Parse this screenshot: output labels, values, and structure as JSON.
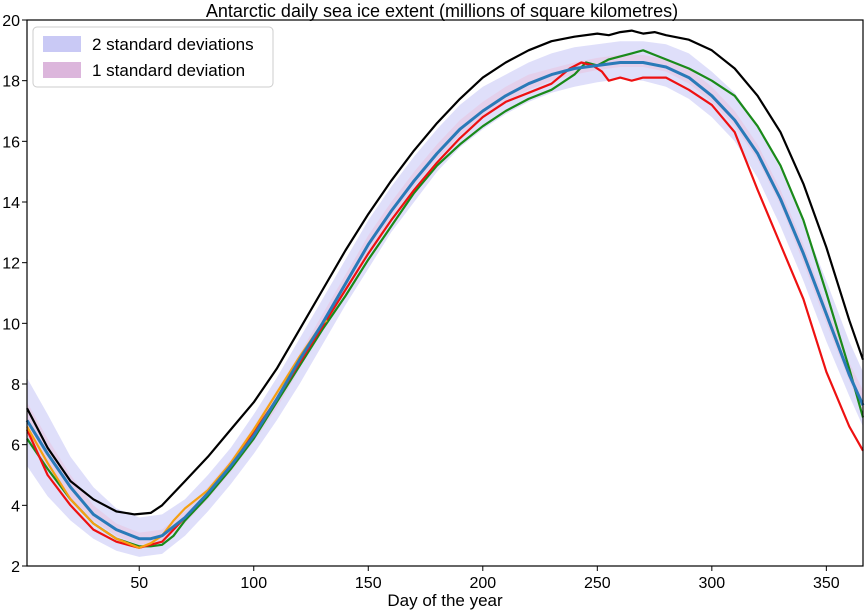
{
  "chart_data": {
    "type": "line",
    "title": "Antarctic daily sea ice extent (millions of square kilometres)",
    "xlabel": "Day of the year",
    "ylabel": "",
    "xlim": [
      1,
      366
    ],
    "ylim": [
      2,
      20
    ],
    "xticks": [
      50,
      100,
      150,
      200,
      250,
      300,
      350
    ],
    "yticks": [
      2,
      4,
      6,
      8,
      10,
      12,
      14,
      16,
      18,
      20
    ],
    "grid": false,
    "legend": {
      "placement": "top-left",
      "entries": [
        {
          "label": "2 standard deviations",
          "color": "#c9c9f5"
        },
        {
          "label": "1 standard deviation",
          "color": "#dcb6dc"
        }
      ]
    },
    "bands": [
      {
        "label": "2 standard deviations",
        "color": "#dcdcfa",
        "x": [
          1,
          10,
          20,
          30,
          40,
          50,
          60,
          70,
          80,
          90,
          100,
          110,
          120,
          130,
          140,
          150,
          160,
          170,
          180,
          190,
          200,
          210,
          220,
          230,
          240,
          250,
          260,
          270,
          280,
          290,
          300,
          310,
          320,
          330,
          340,
          350,
          360,
          366
        ],
        "lower": [
          5.3,
          4.3,
          3.5,
          2.9,
          2.5,
          2.3,
          2.4,
          3.0,
          3.8,
          4.7,
          5.7,
          6.8,
          8.0,
          9.3,
          10.6,
          11.8,
          13.0,
          14.0,
          15.0,
          15.8,
          16.4,
          16.9,
          17.3,
          17.6,
          17.8,
          17.95,
          18.05,
          18.0,
          17.8,
          17.4,
          16.8,
          16.0,
          14.8,
          13.2,
          11.4,
          9.4,
          7.6,
          6.6
        ],
        "upper": [
          8.2,
          7.0,
          5.6,
          4.6,
          3.9,
          3.6,
          3.7,
          4.2,
          5.0,
          5.9,
          7.0,
          8.2,
          9.5,
          10.8,
          12.1,
          13.4,
          14.5,
          15.5,
          16.4,
          17.2,
          17.8,
          18.2,
          18.6,
          18.9,
          19.1,
          19.2,
          19.3,
          19.3,
          19.2,
          18.9,
          18.3,
          17.6,
          16.5,
          15.1,
          13.3,
          11.4,
          9.4,
          8.4
        ]
      },
      {
        "label": "1 standard deviation",
        "color": "#e6cbe6",
        "x": [
          1,
          10,
          20,
          30,
          40,
          50,
          60,
          70,
          80,
          90,
          100,
          110,
          120,
          130,
          140,
          150,
          160,
          170,
          180,
          190,
          200,
          210,
          220,
          230,
          240,
          250,
          260,
          270,
          280,
          290,
          300,
          310,
          320,
          330,
          340,
          350,
          360,
          366
        ],
        "lower": [
          6.3,
          5.2,
          4.2,
          3.5,
          3.0,
          2.7,
          2.8,
          3.4,
          4.2,
          5.1,
          6.1,
          7.2,
          8.5,
          9.8,
          11.1,
          12.3,
          13.5,
          14.5,
          15.4,
          16.2,
          16.8,
          17.3,
          17.7,
          18.0,
          18.2,
          18.35,
          18.45,
          18.45,
          18.3,
          17.9,
          17.3,
          16.5,
          15.4,
          13.9,
          12.0,
          10.0,
          8.1,
          7.1
        ],
        "upper": [
          7.4,
          6.2,
          5.0,
          4.0,
          3.4,
          3.1,
          3.2,
          3.8,
          4.6,
          5.5,
          6.6,
          7.8,
          9.0,
          10.3,
          11.6,
          12.9,
          14.0,
          15.0,
          15.9,
          16.7,
          17.3,
          17.8,
          18.2,
          18.4,
          18.6,
          18.75,
          18.85,
          18.85,
          18.7,
          18.4,
          17.8,
          17.0,
          15.9,
          14.4,
          12.6,
          10.6,
          8.7,
          7.8
        ]
      }
    ],
    "series": [
      {
        "color": "#000000",
        "x": [
          1,
          10,
          20,
          30,
          40,
          48,
          55,
          60,
          70,
          80,
          90,
          100,
          110,
          120,
          130,
          140,
          150,
          160,
          170,
          180,
          190,
          200,
          210,
          220,
          230,
          240,
          250,
          255,
          260,
          265,
          270,
          275,
          280,
          290,
          300,
          310,
          320,
          330,
          340,
          350,
          360,
          366
        ],
        "y": [
          7.2,
          5.9,
          4.8,
          4.2,
          3.8,
          3.7,
          3.75,
          4.0,
          4.8,
          5.6,
          6.5,
          7.4,
          8.5,
          9.8,
          11.1,
          12.4,
          13.6,
          14.7,
          15.7,
          16.6,
          17.4,
          18.1,
          18.6,
          19.0,
          19.3,
          19.45,
          19.55,
          19.5,
          19.6,
          19.65,
          19.55,
          19.6,
          19.5,
          19.35,
          19.0,
          18.4,
          17.5,
          16.3,
          14.6,
          12.5,
          10.1,
          8.8
        ]
      },
      {
        "color": "#2a7ab8",
        "x": [
          1,
          10,
          20,
          30,
          40,
          50,
          55,
          60,
          70,
          80,
          90,
          100,
          110,
          120,
          130,
          140,
          150,
          160,
          170,
          180,
          190,
          200,
          210,
          220,
          230,
          240,
          250,
          260,
          265,
          270,
          280,
          290,
          300,
          310,
          320,
          330,
          340,
          350,
          360,
          366
        ],
        "y": [
          6.8,
          5.7,
          4.6,
          3.7,
          3.2,
          2.9,
          2.9,
          3.0,
          3.6,
          4.4,
          5.3,
          6.3,
          7.5,
          8.8,
          10.0,
          11.3,
          12.6,
          13.7,
          14.7,
          15.6,
          16.4,
          17.0,
          17.5,
          17.9,
          18.2,
          18.4,
          18.5,
          18.6,
          18.6,
          18.6,
          18.45,
          18.1,
          17.5,
          16.7,
          15.6,
          14.1,
          12.3,
          10.3,
          8.3,
          7.3
        ]
      },
      {
        "color": "#1a8a1a",
        "x": [
          1,
          10,
          20,
          30,
          40,
          50,
          55,
          60,
          65,
          70,
          80,
          90,
          100,
          110,
          120,
          130,
          140,
          150,
          160,
          170,
          180,
          190,
          200,
          210,
          220,
          230,
          240,
          245,
          250,
          255,
          260,
          265,
          270,
          275,
          280,
          290,
          300,
          310,
          320,
          330,
          340,
          350,
          360,
          366
        ],
        "y": [
          6.2,
          5.2,
          4.2,
          3.4,
          2.9,
          2.65,
          2.65,
          2.7,
          3.0,
          3.5,
          4.3,
          5.2,
          6.2,
          7.4,
          8.6,
          9.8,
          10.9,
          12.1,
          13.2,
          14.3,
          15.2,
          15.9,
          16.5,
          17.0,
          17.4,
          17.7,
          18.2,
          18.6,
          18.5,
          18.7,
          18.8,
          18.9,
          19.0,
          18.85,
          18.7,
          18.4,
          18.0,
          17.5,
          16.5,
          15.2,
          13.4,
          11.0,
          8.5,
          6.9
        ]
      },
      {
        "color": "#ee1111",
        "x": [
          1,
          10,
          20,
          30,
          40,
          50,
          60,
          70,
          80,
          90,
          100,
          110,
          120,
          130,
          140,
          150,
          160,
          170,
          180,
          190,
          200,
          210,
          220,
          230,
          238,
          243,
          248,
          252,
          255,
          260,
          265,
          270,
          280,
          290,
          300,
          310,
          320,
          330,
          340,
          350,
          360,
          366
        ],
        "y": [
          6.5,
          5.0,
          4.0,
          3.2,
          2.8,
          2.6,
          2.8,
          3.6,
          4.4,
          5.4,
          6.4,
          7.5,
          8.7,
          9.9,
          11.1,
          12.3,
          13.4,
          14.4,
          15.3,
          16.1,
          16.8,
          17.3,
          17.6,
          17.9,
          18.4,
          18.6,
          18.5,
          18.3,
          18.0,
          18.1,
          18.0,
          18.1,
          18.1,
          17.7,
          17.2,
          16.3,
          14.4,
          12.6,
          10.8,
          8.4,
          6.6,
          5.8
        ]
      },
      {
        "color": "#f5a012",
        "x": [
          1,
          10,
          20,
          30,
          40,
          50,
          55,
          60,
          65,
          70,
          80,
          90,
          100,
          110,
          120,
          130,
          132
        ],
        "y": [
          6.6,
          5.4,
          4.2,
          3.4,
          2.9,
          2.6,
          2.75,
          3.0,
          3.5,
          3.9,
          4.5,
          5.4,
          6.5,
          7.7,
          8.9,
          10.0,
          10.1
        ]
      }
    ]
  }
}
